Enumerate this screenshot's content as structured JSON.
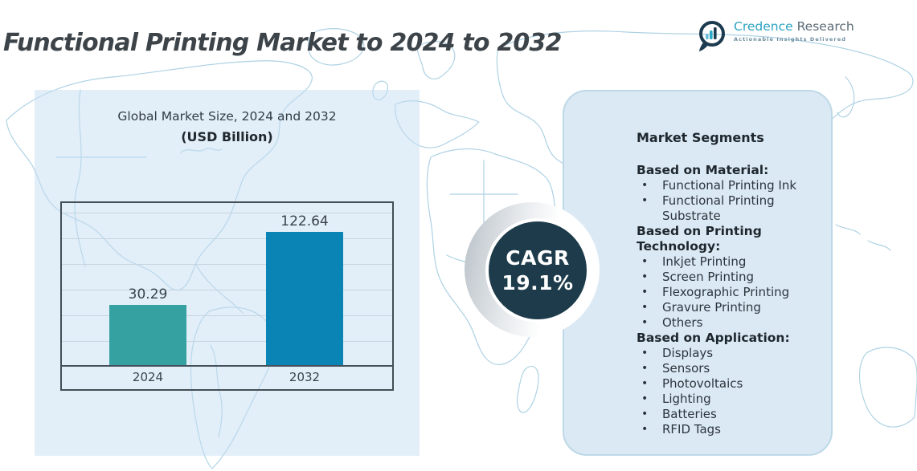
{
  "page": {
    "title": "Functional Printing Market to 2024 to 2032"
  },
  "logo": {
    "brand_primary": "Credence",
    "brand_secondary": "Research",
    "tagline": "Actionable Insights Delivered"
  },
  "chart": {
    "heading_line1": "Global Market Size, 2024 and 2032",
    "heading_line2": "(USD Billion)"
  },
  "chart_data": {
    "type": "bar",
    "title": "Global Market Size, 2024 and 2032 (USD Billion)",
    "categories": [
      "2024",
      "2032"
    ],
    "values": [
      30.29,
      122.64
    ],
    "ylabel": "USD Billion",
    "grid": true,
    "legend": false,
    "bar_colors": [
      "#35a1a1",
      "#0a84b4"
    ]
  },
  "cagr": {
    "label": "CAGR",
    "value": "19.1%"
  },
  "segments": {
    "heading": "Market Segments",
    "groups": [
      {
        "title": "Based on Material:",
        "items": [
          "Functional Printing Ink",
          "Functional Printing Substrate"
        ]
      },
      {
        "title": "Based on Printing Technology:",
        "items": [
          "Inkjet Printing",
          "Screen Printing",
          "Flexographic Printing",
          "Gravure Printing",
          "Others"
        ]
      },
      {
        "title": "Based on Application:",
        "items": [
          "Displays",
          "Sensors",
          "Photovoltaics",
          "Lighting",
          "Batteries",
          "RFID Tags"
        ]
      }
    ]
  },
  "colors": {
    "bar_2024": "#35a1a1",
    "bar_2032": "#0a84b4",
    "cagr_circle": "#1d3b4a",
    "panel_bg": "#dbe9f4",
    "map_outline": "#aed2e4"
  }
}
